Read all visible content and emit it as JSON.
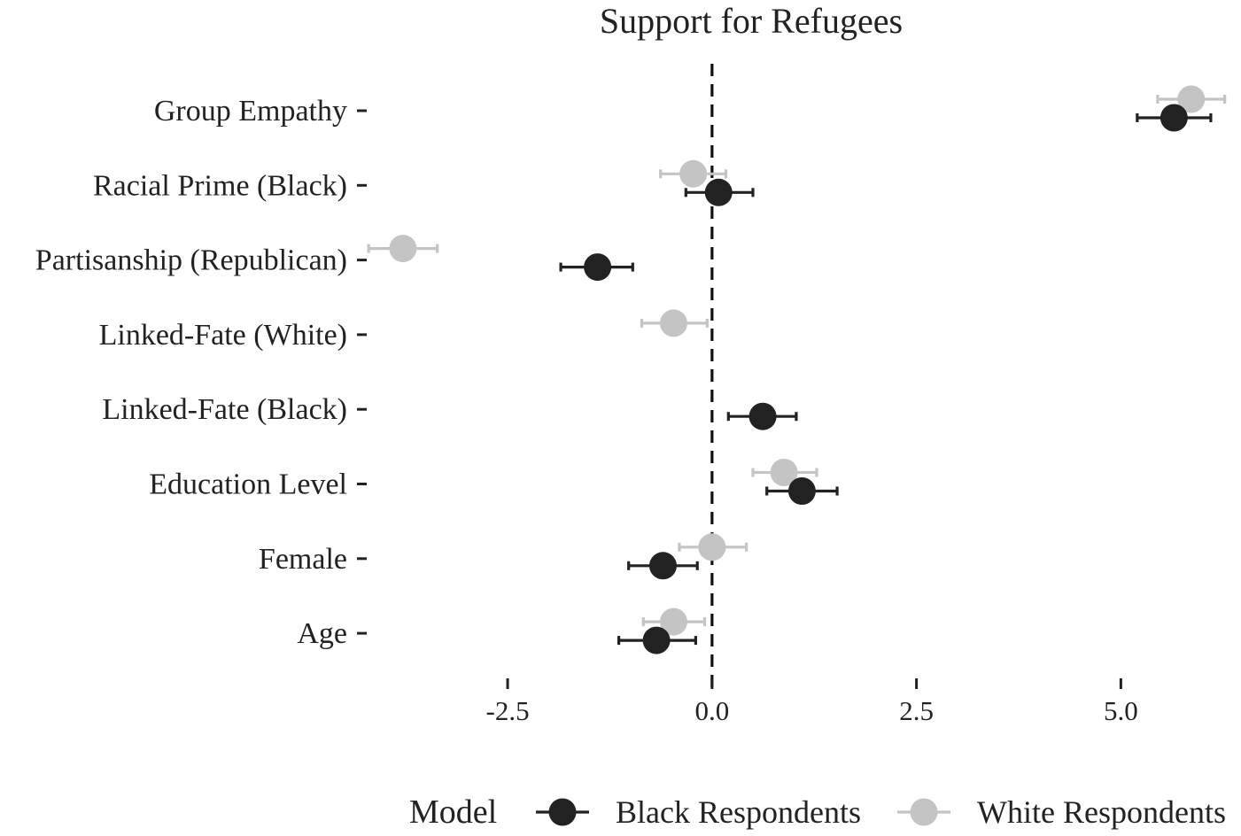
{
  "chart_data": {
    "type": "scatter",
    "title": "Support for Refugees",
    "xlabel": "",
    "ylabel": "",
    "xlim": [
      -4.05,
      6.35
    ],
    "x_ticks": [
      {
        "value": -2.5,
        "label": "-2.5"
      },
      {
        "value": 0.0,
        "label": "0.0"
      },
      {
        "value": 2.5,
        "label": "2.5"
      },
      {
        "value": 5.0,
        "label": "5.0"
      }
    ],
    "reference_line": 0,
    "grid": false,
    "categories": [
      "Group Empathy",
      "Racial Prime (Black)",
      "Partisanship (Republican)",
      "Linked-Fate (White)",
      "Linked-Fate (Black)",
      "Education Level",
      "Female",
      "Age"
    ],
    "legend": {
      "title": "Model",
      "placement": "bottom"
    },
    "series": [
      {
        "name": "Black Respondents",
        "color": "#222222",
        "points": [
          {
            "category": "Group Empathy",
            "estimate": 5.65,
            "low": 5.2,
            "high": 6.1
          },
          {
            "category": "Racial Prime (Black)",
            "estimate": 0.08,
            "low": -0.32,
            "high": 0.5
          },
          {
            "category": "Partisanship (Republican)",
            "estimate": -1.4,
            "low": -1.85,
            "high": -0.97
          },
          {
            "category": "Linked-Fate (Black)",
            "estimate": 0.62,
            "low": 0.2,
            "high": 1.03
          },
          {
            "category": "Education Level",
            "estimate": 1.1,
            "low": 0.67,
            "high": 1.53
          },
          {
            "category": "Female",
            "estimate": -0.6,
            "low": -1.02,
            "high": -0.18
          },
          {
            "category": "Age",
            "estimate": -0.68,
            "low": -1.14,
            "high": -0.2
          }
        ]
      },
      {
        "name": "White Respondents",
        "color": "#c4c4c4",
        "points": [
          {
            "category": "Group Empathy",
            "estimate": 5.86,
            "low": 5.45,
            "high": 6.27
          },
          {
            "category": "Racial Prime (Black)",
            "estimate": -0.23,
            "low": -0.63,
            "high": 0.17
          },
          {
            "category": "Partisanship (Republican)",
            "estimate": -3.78,
            "low": -4.2,
            "high": -3.36
          },
          {
            "category": "Linked-Fate (White)",
            "estimate": -0.47,
            "low": -0.86,
            "high": -0.06
          },
          {
            "category": "Education Level",
            "estimate": 0.88,
            "low": 0.5,
            "high": 1.28
          },
          {
            "category": "Female",
            "estimate": 0.0,
            "low": -0.4,
            "high": 0.42
          },
          {
            "category": "Age",
            "estimate": -0.47,
            "low": -0.84,
            "high": -0.09
          }
        ]
      }
    ]
  }
}
